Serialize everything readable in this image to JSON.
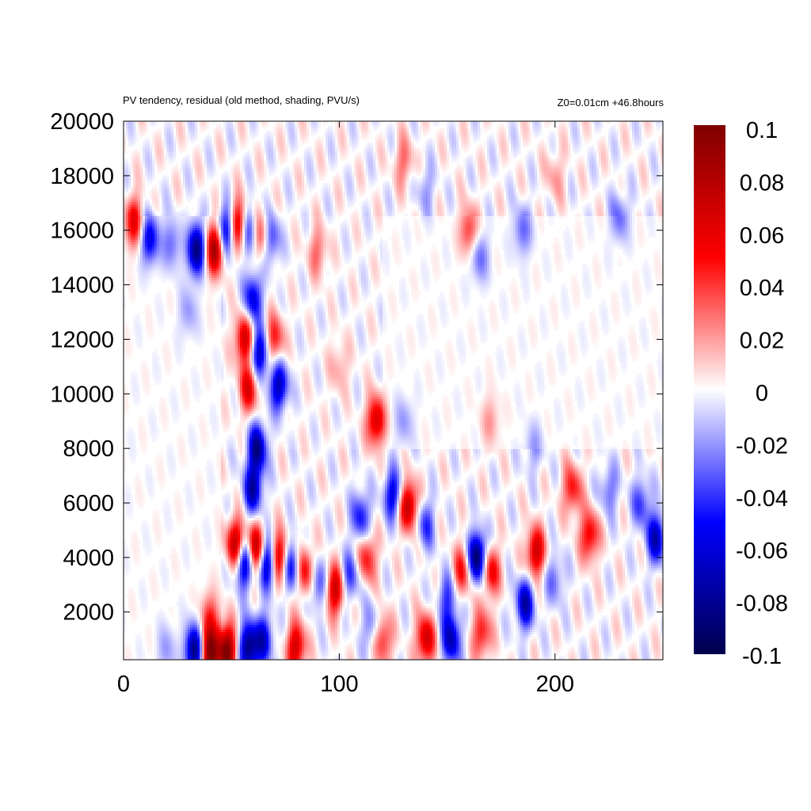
{
  "chart_data": {
    "type": "heatmap",
    "title": "PV tendency, residual (old method, shading, PVU/s)",
    "annotation": "Z0=0.01cm   +46.8hours",
    "xlabel": "",
    "ylabel": "",
    "xlim": [
      0,
      250
    ],
    "ylim": [
      250,
      20000
    ],
    "x_ticks": [
      0,
      100,
      200
    ],
    "y_ticks": [
      2000,
      4000,
      6000,
      8000,
      10000,
      12000,
      14000,
      16000,
      18000,
      20000
    ],
    "colorbar": {
      "range": [
        -0.1,
        0.1
      ],
      "ticks": [
        "0.1",
        "0.08",
        "0.06",
        "0.04",
        "0.02",
        "0",
        "-0.02",
        "-0.04",
        "-0.06",
        "-0.08",
        "-0.1"
      ],
      "colormap": "seismic",
      "stops": [
        "#00004c",
        "#0000ff",
        "#ffffff",
        "#ff0000",
        "#7f0000"
      ]
    },
    "grid": false,
    "features": [
      {
        "x": 5,
        "y": 16300,
        "value": 0.06
      },
      {
        "x": 12,
        "y": 15700,
        "value": -0.06
      },
      {
        "x": 22,
        "y": 15500,
        "value": -0.03
      },
      {
        "x": 34,
        "y": 15300,
        "value": -0.09
      },
      {
        "x": 42,
        "y": 15300,
        "value": 0.09
      },
      {
        "x": 48,
        "y": 16000,
        "value": -0.07
      },
      {
        "x": 53,
        "y": 16200,
        "value": 0.08
      },
      {
        "x": 58,
        "y": 16000,
        "value": -0.05
      },
      {
        "x": 64,
        "y": 15800,
        "value": 0.05
      },
      {
        "x": 68,
        "y": 15700,
        "value": -0.05
      },
      {
        "x": 90,
        "y": 15200,
        "value": 0.03
      },
      {
        "x": 60,
        "y": 13500,
        "value": -0.06
      },
      {
        "x": 56,
        "y": 12000,
        "value": 0.07
      },
      {
        "x": 63,
        "y": 11500,
        "value": -0.07
      },
      {
        "x": 70,
        "y": 12000,
        "value": 0.05
      },
      {
        "x": 58,
        "y": 10200,
        "value": 0.06
      },
      {
        "x": 72,
        "y": 10300,
        "value": -0.07
      },
      {
        "x": 62,
        "y": 8000,
        "value": -0.08
      },
      {
        "x": 60,
        "y": 6500,
        "value": -0.07
      },
      {
        "x": 117,
        "y": 9000,
        "value": 0.07
      },
      {
        "x": 130,
        "y": 9000,
        "value": -0.02
      },
      {
        "x": 125,
        "y": 6300,
        "value": -0.06
      },
      {
        "x": 132,
        "y": 5900,
        "value": 0.08
      },
      {
        "x": 140,
        "y": 5200,
        "value": -0.04
      },
      {
        "x": 110,
        "y": 5500,
        "value": -0.05
      },
      {
        "x": 52,
        "y": 4500,
        "value": 0.08
      },
      {
        "x": 56,
        "y": 3800,
        "value": -0.08
      },
      {
        "x": 61,
        "y": 4300,
        "value": 0.08
      },
      {
        "x": 67,
        "y": 3800,
        "value": -0.08
      },
      {
        "x": 72,
        "y": 4000,
        "value": 0.08
      },
      {
        "x": 78,
        "y": 3700,
        "value": -0.06
      },
      {
        "x": 84,
        "y": 3500,
        "value": 0.06
      },
      {
        "x": 90,
        "y": 3000,
        "value": -0.04
      },
      {
        "x": 98,
        "y": 2800,
        "value": 0.07
      },
      {
        "x": 105,
        "y": 3300,
        "value": -0.04
      },
      {
        "x": 113,
        "y": 4000,
        "value": 0.05
      },
      {
        "x": 150,
        "y": 2500,
        "value": -0.04
      },
      {
        "x": 157,
        "y": 3500,
        "value": 0.05
      },
      {
        "x": 164,
        "y": 4000,
        "value": -0.1
      },
      {
        "x": 170,
        "y": 3500,
        "value": 0.06
      },
      {
        "x": 186,
        "y": 2300,
        "value": -0.07
      },
      {
        "x": 191,
        "y": 4200,
        "value": 0.07
      },
      {
        "x": 200,
        "y": 3200,
        "value": -0.03
      },
      {
        "x": 208,
        "y": 6500,
        "value": 0.05
      },
      {
        "x": 216,
        "y": 4800,
        "value": 0.06
      },
      {
        "x": 225,
        "y": 6500,
        "value": -0.03
      },
      {
        "x": 247,
        "y": 4700,
        "value": -0.07
      },
      {
        "x": 240,
        "y": 6000,
        "value": -0.04
      },
      {
        "x": 33,
        "y": 600,
        "value": -0.09
      },
      {
        "x": 40,
        "y": 500,
        "value": 0.1
      },
      {
        "x": 48,
        "y": 600,
        "value": 0.1
      },
      {
        "x": 58,
        "y": 700,
        "value": -0.09
      },
      {
        "x": 65,
        "y": 1000,
        "value": -0.06
      },
      {
        "x": 80,
        "y": 700,
        "value": 0.07
      },
      {
        "x": 120,
        "y": 1000,
        "value": 0.05
      },
      {
        "x": 140,
        "y": 1000,
        "value": 0.07
      },
      {
        "x": 152,
        "y": 1000,
        "value": -0.07
      },
      {
        "x": 166,
        "y": 1200,
        "value": 0.05
      },
      {
        "x": 115,
        "y": 1400,
        "value": -0.03
      },
      {
        "x": 40,
        "y": 1800,
        "value": 0.04
      },
      {
        "x": 20,
        "y": 600,
        "value": -0.02
      },
      {
        "x": 130,
        "y": 18500,
        "value": 0.03
      },
      {
        "x": 160,
        "y": 16000,
        "value": 0.04
      },
      {
        "x": 165,
        "y": 15000,
        "value": -0.03
      },
      {
        "x": 185,
        "y": 16000,
        "value": -0.03
      },
      {
        "x": 140,
        "y": 17500,
        "value": -0.02
      },
      {
        "x": 200,
        "y": 18000,
        "value": 0.02
      },
      {
        "x": 230,
        "y": 16500,
        "value": -0.03
      },
      {
        "x": 100,
        "y": 11000,
        "value": 0.02
      },
      {
        "x": 30,
        "y": 13000,
        "value": -0.02
      },
      {
        "x": 170,
        "y": 9000,
        "value": 0.02
      },
      {
        "x": 190,
        "y": 8000,
        "value": -0.02
      }
    ]
  }
}
